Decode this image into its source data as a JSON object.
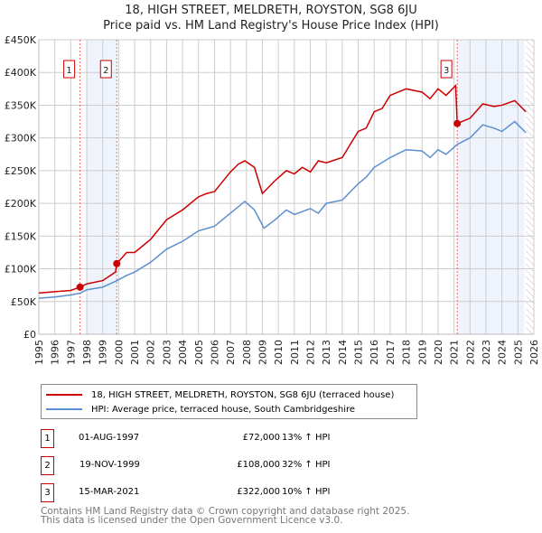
{
  "title_line1": "18, HIGH STREET, MELDRETH, ROYSTON, SG8 6JU",
  "title_line2": "Price paid vs. HM Land Registry's House Price Index (HPI)",
  "chart_data": {
    "type": "line",
    "xlim": [
      1995,
      2026
    ],
    "ylim": [
      0,
      450000
    ],
    "y_ticks": [
      0,
      50000,
      100000,
      150000,
      200000,
      250000,
      300000,
      350000,
      400000,
      450000
    ],
    "y_tick_labels": [
      "£0",
      "£50K",
      "£100K",
      "£150K",
      "£200K",
      "£250K",
      "£300K",
      "£350K",
      "£400K",
      "£450K"
    ],
    "x_ticks": [
      "1995",
      "1996",
      "1997",
      "1998",
      "1999",
      "2000",
      "2001",
      "2002",
      "2003",
      "2004",
      "2005",
      "2006",
      "2007",
      "2008",
      "2009",
      "2010",
      "2011",
      "2012",
      "2013",
      "2014",
      "2015",
      "2016",
      "2017",
      "2018",
      "2019",
      "2020",
      "2021",
      "2022",
      "2023",
      "2024",
      "2025",
      "2026"
    ],
    "grid": true,
    "series": [
      {
        "name": "18, HIGH STREET, MELDRETH, ROYSTON, SG8 6JU (terraced house)",
        "color": "#cc0000",
        "x": [
          1995,
          1996,
          1997,
          1997.58,
          1998,
          1999,
          1999.8,
          1999.88,
          2000.5,
          2001,
          2002,
          2003,
          2004,
          2005,
          2005.5,
          2006,
          2007,
          2007.5,
          2007.9,
          2008.5,
          2009,
          2009.8,
          2010.5,
          2011,
          2011.5,
          2012,
          2012.5,
          2013,
          2014,
          2014.5,
          2015,
          2015.5,
          2016,
          2016.5,
          2017,
          2018,
          2019,
          2019.5,
          2020,
          2020.5,
          2021.1,
          2021.2,
          2022,
          2022.8,
          2023.5,
          2024,
          2024.8,
          2025.5
        ],
        "y": [
          63000,
          65000,
          67000,
          72000,
          77000,
          82000,
          95000,
          108000,
          125000,
          125000,
          145000,
          175000,
          190000,
          210000,
          215000,
          218000,
          248000,
          260000,
          265000,
          255000,
          215000,
          235000,
          250000,
          245000,
          255000,
          248000,
          265000,
          262000,
          270000,
          290000,
          310000,
          315000,
          340000,
          345000,
          365000,
          375000,
          370000,
          360000,
          375000,
          365000,
          380000,
          322000,
          330000,
          352000,
          348000,
          350000,
          357000,
          340000
        ]
      },
      {
        "name": "HPI: Average price, terraced house, South Cambridgeshire",
        "color": "#5b8fd0",
        "x": [
          1995,
          1996,
          1997,
          1997.6,
          1998,
          1999,
          1999.9,
          2000.5,
          2001,
          2002,
          2003,
          2004,
          2005,
          2006,
          2007,
          2007.9,
          2008.5,
          2009.1,
          2009.8,
          2010.5,
          2011,
          2012,
          2012.5,
          2013,
          2014,
          2015,
          2015.5,
          2016,
          2017,
          2018,
          2019,
          2019.5,
          2020,
          2020.5,
          2021.2,
          2022,
          2022.8,
          2023.5,
          2024,
          2024.8,
          2025.5
        ],
        "y": [
          55000,
          57000,
          60000,
          63000,
          68000,
          72000,
          82000,
          90000,
          95000,
          110000,
          130000,
          142000,
          158000,
          165000,
          185000,
          203000,
          190000,
          162000,
          175000,
          190000,
          183000,
          192000,
          185000,
          200000,
          205000,
          230000,
          240000,
          255000,
          270000,
          282000,
          280000,
          270000,
          282000,
          275000,
          290000,
          300000,
          320000,
          315000,
          310000,
          325000,
          308000
        ]
      }
    ],
    "sales": [
      {
        "label": "1",
        "x": 1997.58,
        "y": 72000,
        "date": "01-AUG-1997",
        "price": "£72,000",
        "hpi": "13% ↑ HPI"
      },
      {
        "label": "2",
        "x": 1999.88,
        "y": 108000,
        "date": "19-NOV-1999",
        "price": "£108,000",
        "hpi": "32% ↑ HPI"
      },
      {
        "label": "3",
        "x": 2021.2,
        "y": 322000,
        "date": "15-MAR-2021",
        "price": "£322,000",
        "hpi": "10% ↑ HPI"
      }
    ],
    "shaded": [
      [
        1998,
        1999.88
      ],
      [
        2021.2,
        2025.4
      ]
    ],
    "hatched_from": 2025.5
  },
  "footer": [
    "Contains HM Land Registry data © Crown copyright and database right 2025.",
    "This data is licensed under the Open Government Licence v3.0."
  ]
}
